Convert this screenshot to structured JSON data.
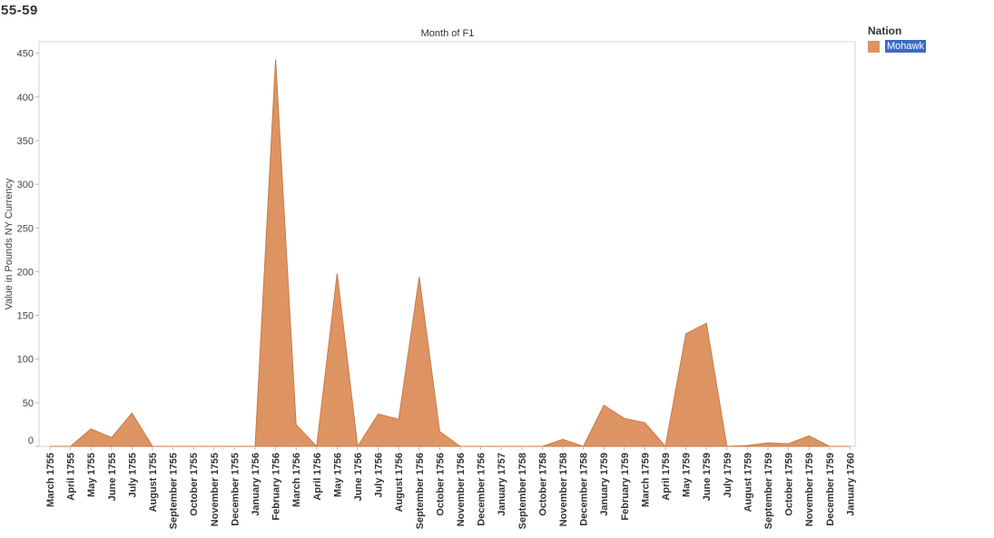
{
  "page": {
    "title": "55-59"
  },
  "legend": {
    "title": "Nation",
    "entries": [
      {
        "label": "Mohawk",
        "color": "#dd9462"
      }
    ]
  },
  "colors": {
    "area_fill": "#dd9462",
    "area_stroke": "#c97a48"
  },
  "chart_data": {
    "type": "area",
    "title": "Month of F1",
    "ylabel": "Value in Pounds NY Currency",
    "ylim": [
      0,
      460
    ],
    "yticks": [
      0,
      50,
      100,
      150,
      200,
      250,
      300,
      350,
      400,
      450
    ],
    "categories": [
      "March 1755",
      "April 1755",
      "May 1755",
      "June 1755",
      "July 1755",
      "August 1755",
      "September 1755",
      "October 1755",
      "November 1755",
      "December 1755",
      "January 1756",
      "February 1756",
      "March 1756",
      "April 1756",
      "May 1756",
      "June 1756",
      "July 1756",
      "August 1756",
      "September 1756",
      "October 1756",
      "November 1756",
      "December 1756",
      "January 1757",
      "September 1758",
      "October 1758",
      "November 1758",
      "December 1758",
      "January 1759",
      "February 1759",
      "March 1759",
      "April 1759",
      "May 1759",
      "June 1759",
      "July 1759",
      "August 1759",
      "September 1759",
      "October 1759",
      "November 1759",
      "December 1759",
      "January 1760"
    ],
    "series": [
      {
        "name": "Mohawk",
        "values": [
          0,
          0,
          20,
          10,
          38,
          0,
          0,
          0,
          0,
          0,
          0,
          443,
          25,
          0,
          198,
          0,
          37,
          31,
          194,
          17,
          0,
          0,
          0,
          0,
          0,
          8,
          0,
          47,
          32,
          27,
          0,
          129,
          141,
          0,
          1,
          4,
          3,
          12,
          0,
          0
        ]
      }
    ]
  }
}
